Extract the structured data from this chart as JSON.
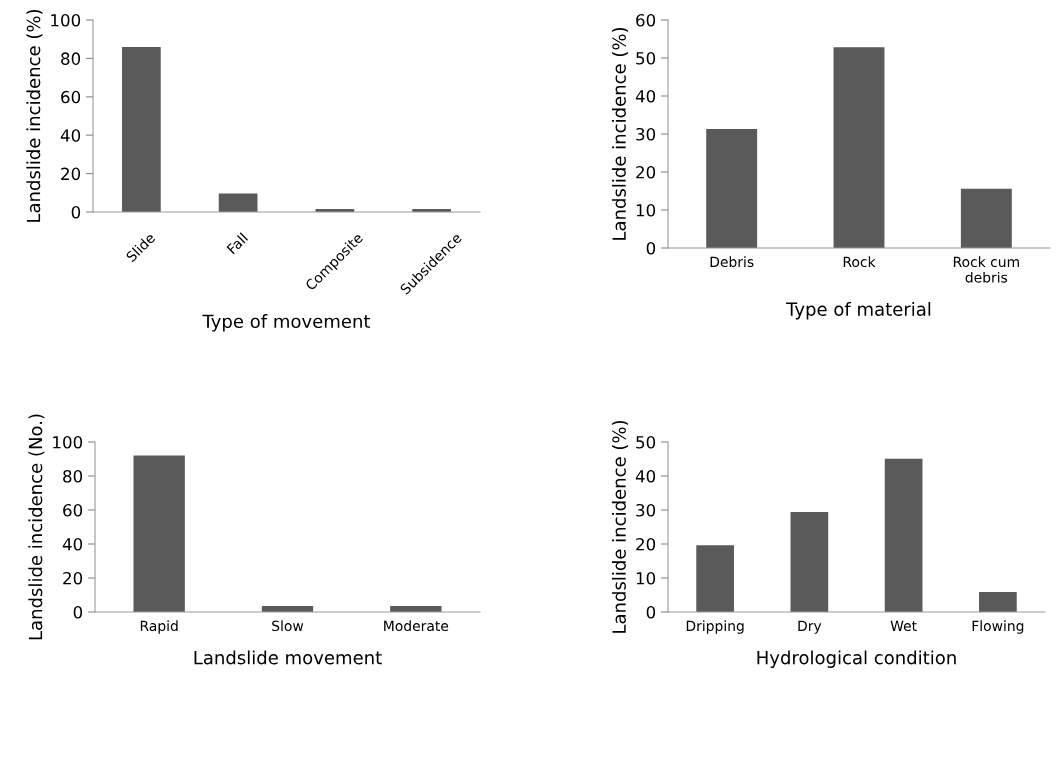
{
  "chart_data": [
    {
      "type": "bar",
      "xlabel": "Type of movement",
      "ylabel": "Landslide incidence (%)",
      "categories": [
        "Slide",
        "Fall",
        "Composite",
        "Subsidence"
      ],
      "values": [
        86,
        9.6,
        1.5,
        1.5
      ],
      "color": "#5a5a5a",
      "ylim": [
        0,
        100
      ],
      "yticks": [
        0,
        20,
        40,
        60,
        80,
        100
      ],
      "grid": false
    },
    {
      "type": "bar",
      "xlabel": "Type of material",
      "ylabel": "Landslide incidence (%)",
      "categories": [
        "Debris",
        "Rock",
        "Rock cum debris"
      ],
      "values": [
        31.3,
        52.8,
        15.6
      ],
      "color": "#5a5a5a",
      "ylim": [
        0,
        60
      ],
      "yticks": [
        0,
        10,
        20,
        30,
        40,
        50,
        60
      ],
      "grid": false
    },
    {
      "type": "bar",
      "xlabel": "Landslide movement",
      "ylabel": "Landslide incidence (No.)",
      "categories": [
        "Rapid",
        "Slow",
        "Moderate"
      ],
      "values": [
        92,
        3.6,
        3.6
      ],
      "color": "#5a5a5a",
      "ylim": [
        0,
        100
      ],
      "yticks": [
        0,
        20,
        40,
        60,
        80,
        100
      ],
      "grid": false
    },
    {
      "type": "bar",
      "xlabel": "Hydrological condition",
      "ylabel": "Landslide incidence (%)",
      "categories": [
        "Dripping",
        "Dry",
        "Wet",
        "Flowing"
      ],
      "values": [
        19.6,
        29.4,
        45.1,
        5.9
      ],
      "color": "#5a5a5a",
      "ylim": [
        0,
        50
      ],
      "yticks": [
        0,
        10,
        20,
        30,
        40,
        50
      ],
      "grid": false
    }
  ]
}
